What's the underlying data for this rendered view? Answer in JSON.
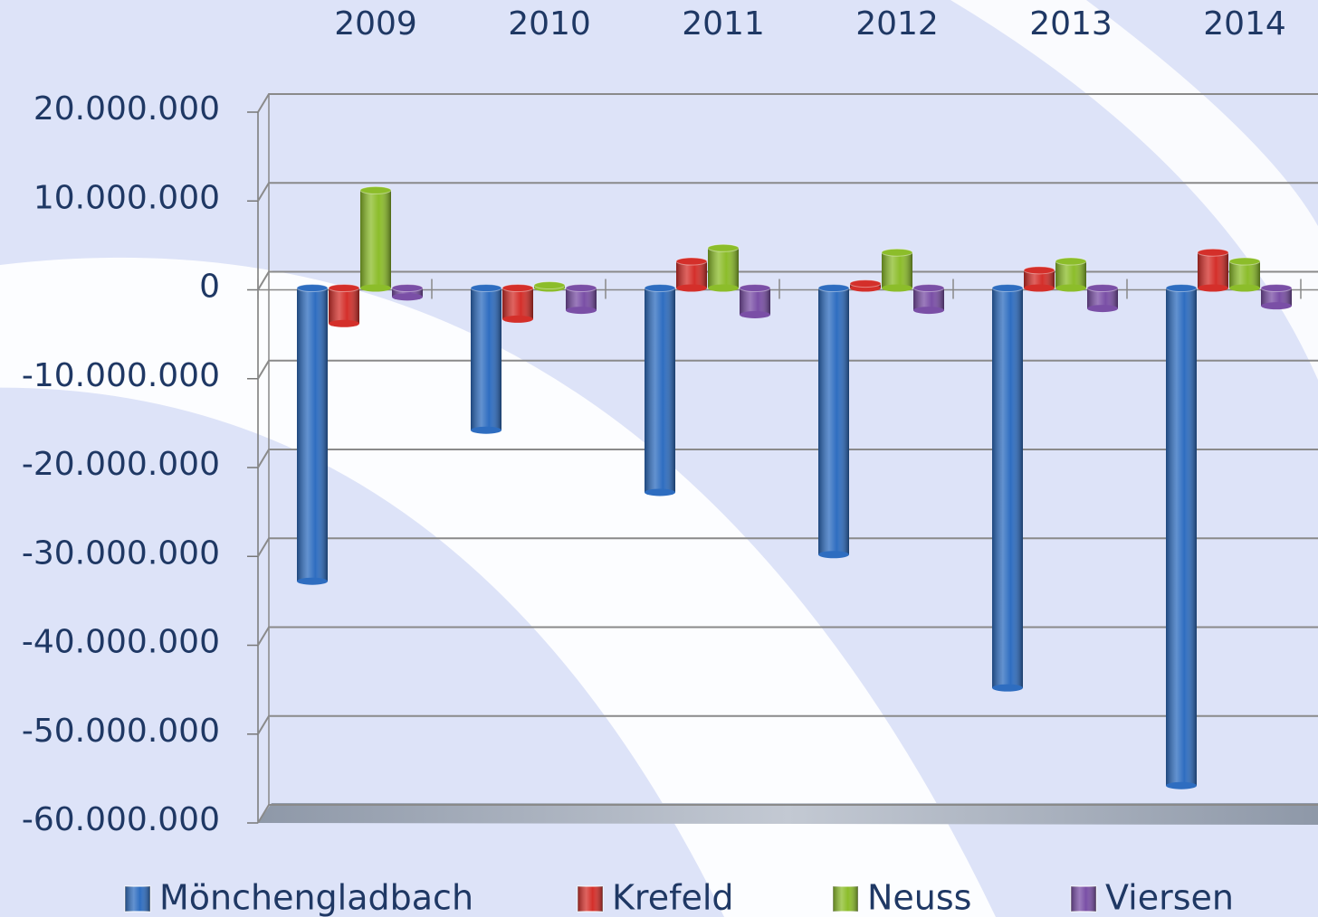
{
  "chart_data": {
    "type": "bar",
    "categories": [
      "2009",
      "2010",
      "2011",
      "2012",
      "2013",
      "2014"
    ],
    "series": [
      {
        "name": "Mönchengladbach",
        "color": "#2e6dc0",
        "values": [
          -33000000,
          -16000000,
          -23000000,
          -30000000,
          -45000000,
          -56000000
        ]
      },
      {
        "name": "Krefeld",
        "color": "#d42f2a",
        "values": [
          -4000000,
          -3500000,
          3000000,
          500000,
          2000000,
          4000000
        ]
      },
      {
        "name": "Neuss",
        "color": "#8cbd2a",
        "values": [
          11000000,
          300000,
          4500000,
          4000000,
          3000000,
          3000000
        ]
      },
      {
        "name": "Viersen",
        "color": "#7a4fa6",
        "values": [
          -1000000,
          -2500000,
          -3000000,
          -2500000,
          -2300000,
          -2000000
        ]
      }
    ],
    "ylim": [
      -60000000,
      20000000
    ],
    "yticks": [
      {
        "value": -60000000,
        "label": "-60.000.000"
      },
      {
        "value": -50000000,
        "label": "-50.000.000"
      },
      {
        "value": -40000000,
        "label": "-40.000.000"
      },
      {
        "value": -30000000,
        "label": "-30.000.000"
      },
      {
        "value": -20000000,
        "label": "-20.000.000"
      },
      {
        "value": -10000000,
        "label": "-10.000.000"
      },
      0,
      {
        "value": 10000000,
        "label": "10.000.000"
      },
      {
        "value": 20000000,
        "label": "20.000.000"
      }
    ],
    "grid": true,
    "legend": "bottom"
  }
}
